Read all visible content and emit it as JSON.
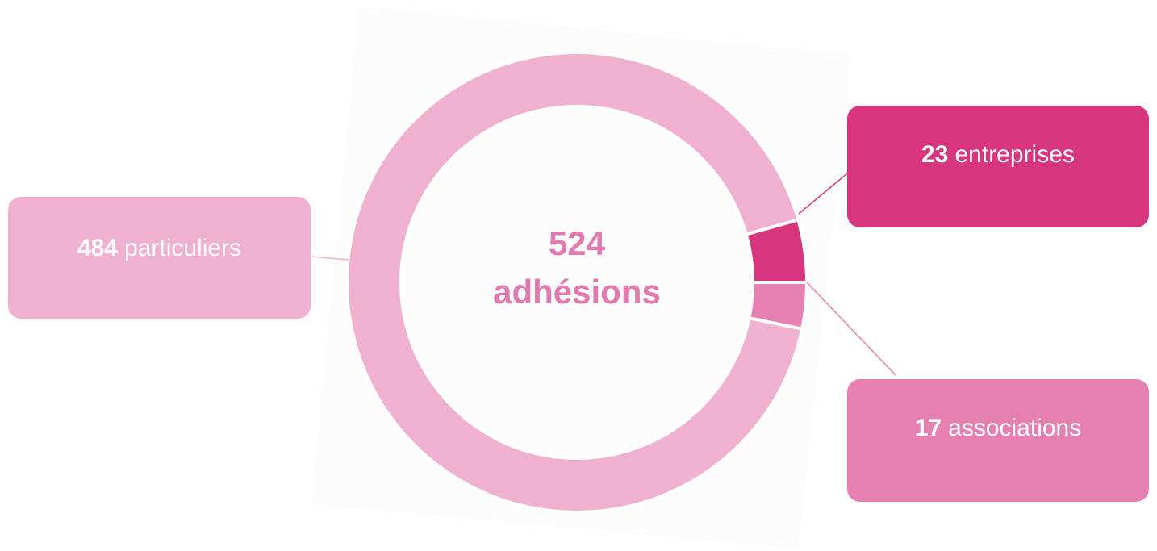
{
  "chart_data": {
    "type": "pie",
    "donut": true,
    "categories": [
      "particuliers",
      "entreprises",
      "associations"
    ],
    "values": [
      484,
      23,
      17
    ],
    "colors": [
      "#f0b0d0",
      "#d8357f",
      "#e580b0"
    ],
    "total": 524,
    "total_label": "adhésions"
  }
}
